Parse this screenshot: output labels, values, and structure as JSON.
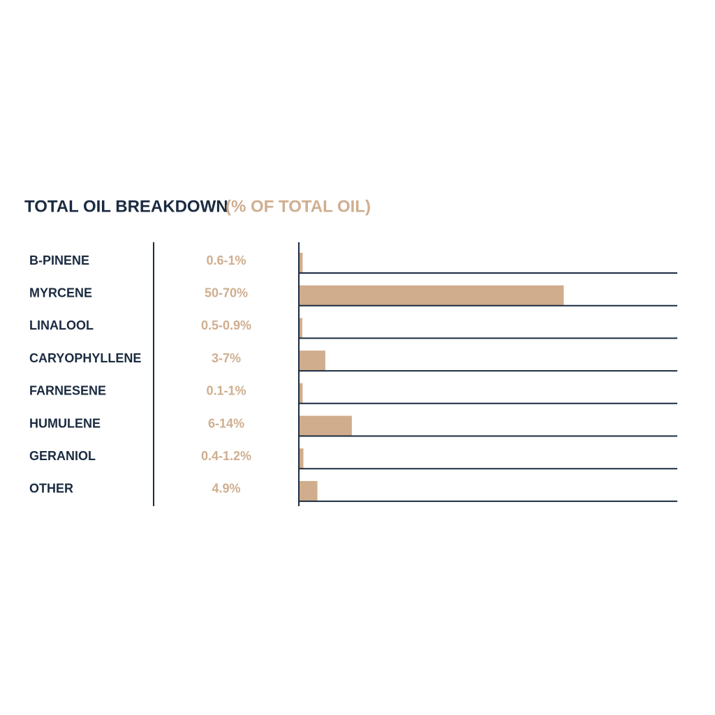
{
  "chart_data": {
    "type": "bar",
    "orientation": "horizontal",
    "title": "TOTAL OIL BREAKDOWN",
    "subtitle": "(% OF TOTAL OIL)",
    "categories": [
      "B-PINENE",
      "MYRCENE",
      "LINALOOL",
      "CARYOPHYLLENE",
      "FARNESENE",
      "HUMULENE",
      "GERANIOL",
      "OTHER"
    ],
    "values": [
      1,
      70,
      0.9,
      7,
      1,
      14,
      1.2,
      4.9
    ],
    "value_labels": [
      "0.6-1%",
      "50-70%",
      "0.5-0.9%",
      "3-7%",
      "0.1-1%",
      "6-14%",
      "0.4-1.2%",
      "4.9%"
    ],
    "color": "#cfad8d",
    "xlim": [
      0,
      100
    ]
  }
}
